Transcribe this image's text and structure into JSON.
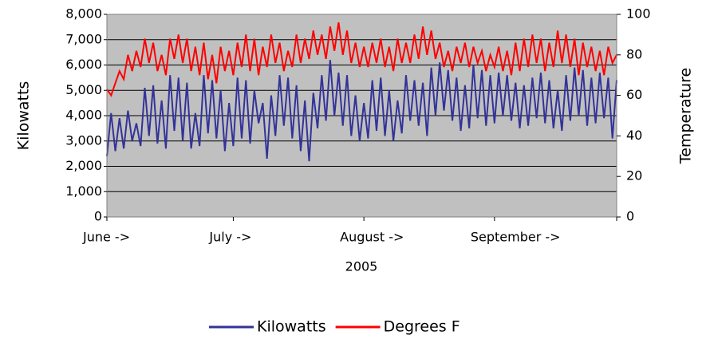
{
  "chart_data": {
    "type": "line",
    "x_title": "2005",
    "y_title": "Kilowatts",
    "y2_title": "Temperature",
    "xlim": [
      0,
      121
    ],
    "xticks": [
      {
        "value": 0,
        "label": "June ->"
      },
      {
        "value": 30,
        "label": "July ->"
      },
      {
        "value": 61,
        "label": "August ->"
      },
      {
        "value": 92,
        "label": "September ->"
      }
    ],
    "ylim": [
      0,
      8000
    ],
    "yticks": [
      {
        "value": 0,
        "label": "0"
      },
      {
        "value": 1000,
        "label": "1,000"
      },
      {
        "value": 2000,
        "label": "2,000"
      },
      {
        "value": 3000,
        "label": "3,000"
      },
      {
        "value": 4000,
        "label": "4,000"
      },
      {
        "value": 5000,
        "label": "5,000"
      },
      {
        "value": 6000,
        "label": "6,000"
      },
      {
        "value": 7000,
        "label": "7,000"
      },
      {
        "value": 8000,
        "label": "8,000"
      }
    ],
    "y2lim": [
      0,
      100
    ],
    "y2ticks": [
      0,
      20,
      40,
      60,
      80,
      100
    ],
    "grid": true,
    "legend": "bottom",
    "series": [
      {
        "name": "Kilowatts",
        "color": "#333399",
        "values": [
          2400,
          4100,
          2600,
          3900,
          2700,
          4200,
          3000,
          3700,
          2800,
          5100,
          3200,
          5200,
          2900,
          4600,
          2700,
          5600,
          3400,
          5500,
          3000,
          5300,
          2700,
          4100,
          2800,
          5600,
          3300,
          5400,
          3100,
          5000,
          2600,
          4500,
          2800,
          5500,
          3100,
          5400,
          2900,
          5000,
          3700,
          4500,
          2300,
          4800,
          3200,
          5600,
          3600,
          5500,
          3100,
          5200,
          2600,
          4600,
          2200,
          4900,
          3500,
          5600,
          3800,
          6200,
          4000,
          5700,
          3600,
          5600,
          3200,
          4800,
          3000,
          4500,
          3100,
          5400,
          3400,
          5500,
          3200,
          5000,
          3000,
          4600,
          3300,
          5600,
          3800,
          5400,
          3600,
          5300,
          3200,
          5900,
          4000,
          6100,
          4200,
          5800,
          3800,
          5500,
          3400,
          5200,
          3500,
          6000,
          3900,
          5800,
          3600,
          5600,
          3700,
          5700,
          4000,
          5600,
          3800,
          5300,
          3500,
          5200,
          3600,
          5500,
          3900,
          5700,
          3700,
          5400,
          3500,
          5000,
          3400,
          5600,
          3800,
          5900,
          4000,
          5800,
          3600,
          5500,
          3700,
          5700,
          3900,
          5500,
          3100,
          5400
        ]
      },
      {
        "name": "Degrees F",
        "color": "#ff0000",
        "axis": "y2",
        "values": [
          63,
          60,
          66,
          72,
          68,
          80,
          72,
          82,
          74,
          88,
          76,
          86,
          72,
          80,
          70,
          88,
          78,
          90,
          76,
          88,
          72,
          84,
          70,
          86,
          68,
          80,
          66,
          84,
          72,
          82,
          70,
          86,
          74,
          90,
          72,
          88,
          70,
          84,
          74,
          90,
          76,
          86,
          72,
          82,
          74,
          90,
          76,
          88,
          78,
          92,
          80,
          90,
          78,
          94,
          82,
          96,
          80,
          92,
          76,
          86,
          74,
          84,
          74,
          86,
          76,
          88,
          74,
          84,
          72,
          88,
          76,
          86,
          76,
          90,
          78,
          94,
          80,
          92,
          78,
          86,
          74,
          82,
          72,
          84,
          76,
          86,
          74,
          84,
          76,
          82,
          72,
          80,
          74,
          84,
          72,
          82,
          70,
          86,
          72,
          88,
          74,
          90,
          76,
          88,
          72,
          86,
          74,
          92,
          76,
          90,
          74,
          88,
          70,
          86,
          74,
          84,
          72,
          82,
          70,
          84,
          76,
          80
        ]
      }
    ]
  }
}
